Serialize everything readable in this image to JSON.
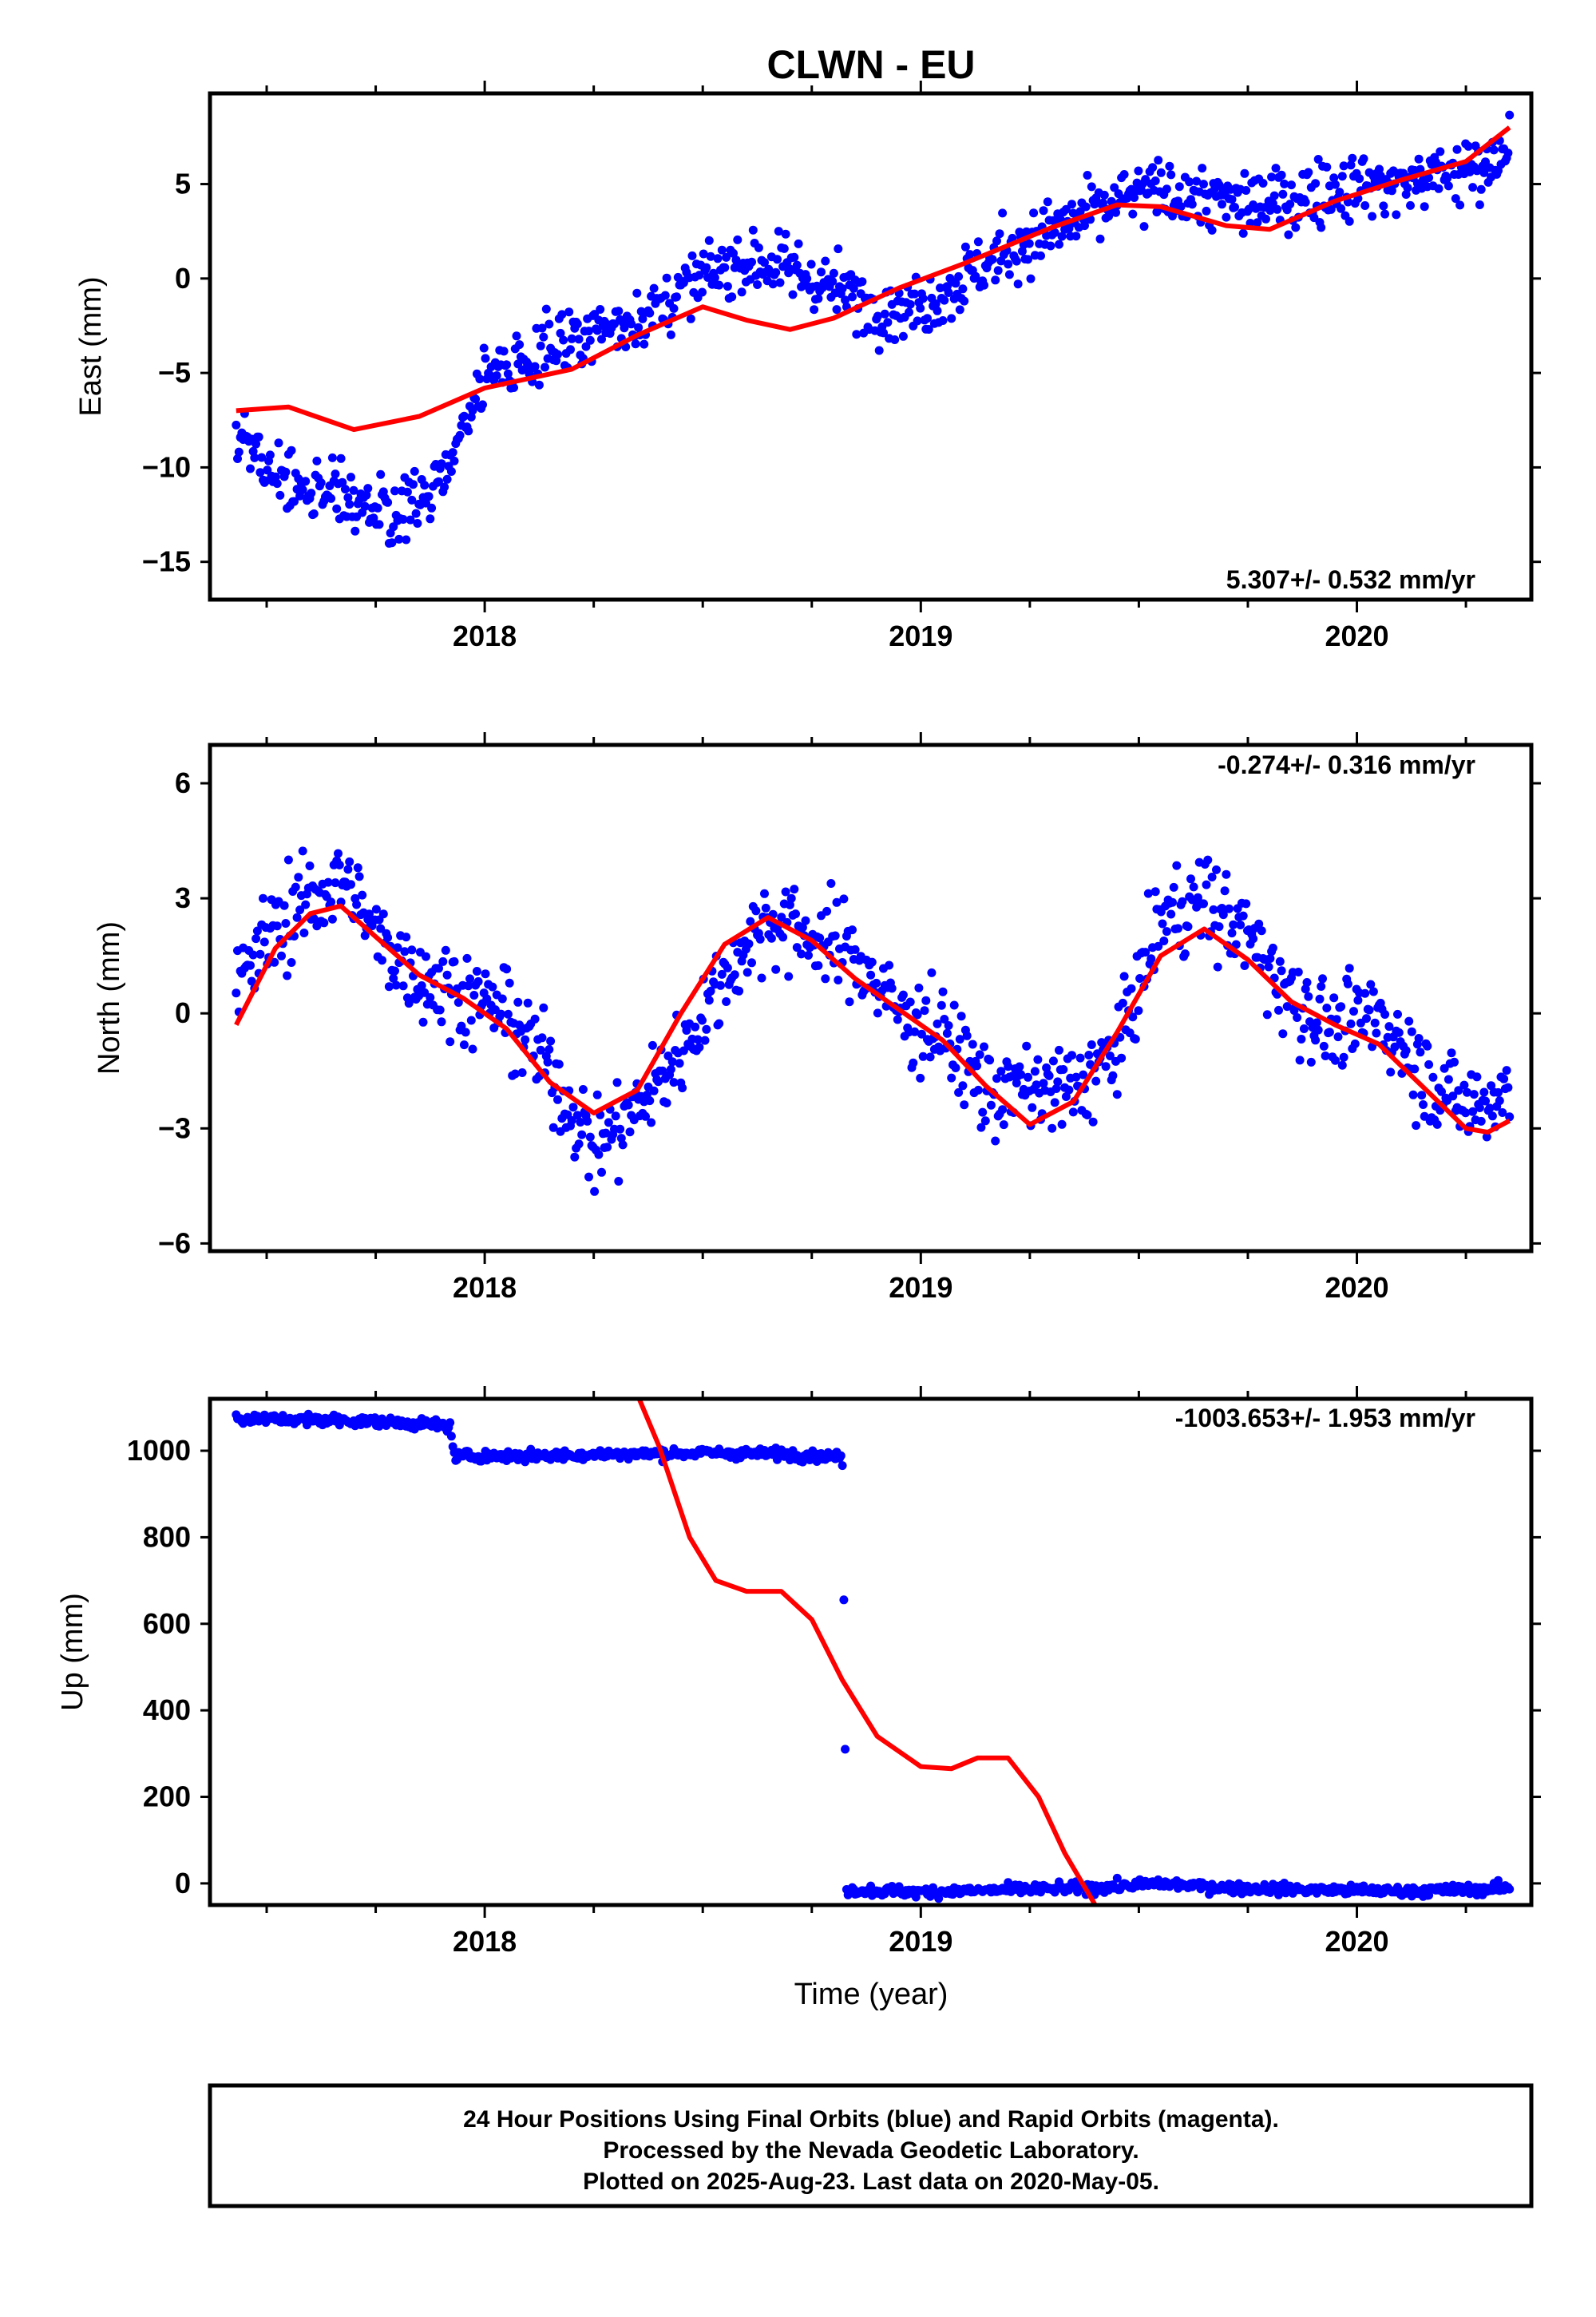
{
  "title": "CLWN - EU",
  "footer": {
    "line1": "24 Hour Positions Using Final Orbits (blue) and Rapid Orbits (magenta).",
    "line2": "Processed by the Nevada Geodetic Laboratory.",
    "line3": "Plotted on 2025-Aug-23. Last data on 2020-May-05."
  },
  "colors": {
    "data": "#0000ff",
    "model": "#ff0000",
    "frame": "#000000"
  },
  "chart_data": [
    {
      "type": "scatter",
      "ylabel": "East (mm)",
      "rate": "5.307+/- 0.532 mm/yr",
      "xlim": [
        2017.37,
        2020.4
      ],
      "ylim": [
        -17,
        9.8
      ],
      "xticks": [
        2018,
        2019,
        2020
      ],
      "yticks": [
        -15,
        -10,
        -5,
        0,
        5
      ],
      "series": [
        {
          "x": [
            2017.43,
            2017.5,
            2017.6,
            2017.7,
            2017.8,
            2017.9,
            2017.97,
            2018.03,
            2018.1,
            2018.2,
            2018.3,
            2018.4,
            2018.5,
            2018.6,
            2018.7,
            2018.8,
            2018.9,
            2019.0,
            2019.1,
            2019.2,
            2019.3,
            2019.4,
            2019.5,
            2019.6,
            2019.7,
            2019.8,
            2019.9,
            2020.0,
            2020.1,
            2020.2,
            2020.3,
            2020.35
          ],
          "y": [
            -8,
            -10.5,
            -11,
            -12,
            -12.5,
            -11,
            -6.5,
            -5,
            -4,
            -3,
            -2.5,
            -1.5,
            0,
            1,
            0.5,
            -0.5,
            -1.5,
            -1.5,
            0,
            1.5,
            2.5,
            3.5,
            4.5,
            4.5,
            4,
            4,
            4.5,
            5,
            5,
            5.5,
            6,
            7.5
          ]
        },
        {
          "x": [
            2017.43,
            2017.55,
            2017.7,
            2017.85,
            2018.0,
            2018.2,
            2018.35,
            2018.5,
            2018.6,
            2018.7,
            2018.8,
            2018.95,
            2019.1,
            2019.3,
            2019.45,
            2019.55,
            2019.7,
            2019.8,
            2019.95,
            2020.1,
            2020.25,
            2020.35
          ],
          "y": [
            -7,
            -6.8,
            -8,
            -7.3,
            -5.8,
            -4.8,
            -3,
            -1.5,
            -2.2,
            -2.7,
            -2.1,
            -0.5,
            0.8,
            2.7,
            3.9,
            3.8,
            2.8,
            2.6,
            4.1,
            5.2,
            6.2,
            8.0
          ]
        }
      ]
    },
    {
      "type": "scatter",
      "ylabel": "North (mm)",
      "rate": "-0.274+/- 0.316 mm/yr",
      "xlim": [
        2017.37,
        2020.4
      ],
      "ylim": [
        -6.2,
        7
      ],
      "xticks": [
        2018,
        2019,
        2020
      ],
      "yticks": [
        -6,
        -3,
        0,
        3,
        6
      ],
      "series": [
        {
          "x": [
            2017.43,
            2017.5,
            2017.6,
            2017.68,
            2017.75,
            2017.85,
            2017.95,
            2018.05,
            2018.15,
            2018.25,
            2018.35,
            2018.45,
            2018.55,
            2018.65,
            2018.75,
            2018.85,
            2018.95,
            2019.05,
            2019.15,
            2019.25,
            2019.35,
            2019.45,
            2019.55,
            2019.65,
            2019.75,
            2019.85,
            2019.95,
            2020.05,
            2020.15,
            2020.25,
            2020.35
          ],
          "y": [
            0.5,
            2,
            3,
            3.5,
            2,
            1,
            0.5,
            0,
            -1.5,
            -3.5,
            -2.5,
            -1,
            1,
            2.5,
            2,
            1.5,
            0,
            -0.5,
            -2,
            -2,
            -2,
            -1,
            2.5,
            3,
            2,
            0.5,
            -0.5,
            0,
            -1.5,
            -2.5,
            -2
          ]
        },
        {
          "x": [
            2017.43,
            2017.52,
            2017.6,
            2017.67,
            2017.75,
            2017.85,
            2017.95,
            2018.05,
            2018.15,
            2018.25,
            2018.35,
            2018.45,
            2018.55,
            2018.65,
            2018.75,
            2018.85,
            2018.95,
            2019.05,
            2019.15,
            2019.25,
            2019.35,
            2019.45,
            2019.55,
            2019.65,
            2019.75,
            2019.85,
            2019.95,
            2020.05,
            2020.15,
            2020.25,
            2020.3,
            2020.35
          ],
          "y": [
            -0.3,
            1.7,
            2.6,
            2.8,
            2.0,
            1.0,
            0.4,
            -0.4,
            -1.8,
            -2.6,
            -2.0,
            0.0,
            1.8,
            2.5,
            1.9,
            0.9,
            0.1,
            -0.7,
            -1.9,
            -2.9,
            -2.3,
            -0.5,
            1.5,
            2.2,
            1.4,
            0.3,
            -0.3,
            -0.8,
            -1.9,
            -3.0,
            -3.1,
            -2.8
          ]
        }
      ]
    },
    {
      "type": "scatter",
      "ylabel": "Up (mm)",
      "xlabel": "Time (year)",
      "rate": "-1003.653+/- 1.953 mm/yr",
      "xlim": [
        2017.37,
        2020.4
      ],
      "ylim": [
        -50,
        1120
      ],
      "xticks": [
        2018,
        2019,
        2020
      ],
      "yticks": [
        0,
        200,
        400,
        600,
        800,
        1000
      ],
      "series": [
        {
          "x": [
            2017.43,
            2017.55,
            2017.7,
            2017.85,
            2017.92,
            2017.93,
            2018.1,
            2018.3,
            2018.5,
            2018.7,
            2018.82,
            2018.83,
            2019.0,
            2019.2,
            2019.4,
            2019.55,
            2019.7,
            2019.9,
            2020.1,
            2020.25,
            2020.35
          ],
          "y": [
            1075,
            1072,
            1070,
            1062,
            1058,
            988,
            988,
            992,
            995,
            992,
            985,
            -15,
            -20,
            -15,
            -10,
            0,
            -10,
            -15,
            -18,
            -15,
            -10
          ]
        },
        {
          "x": [
            2018.35,
            2018.4,
            2018.47,
            2018.53,
            2018.6,
            2018.68,
            2018.75,
            2018.82,
            2018.9,
            2019.0,
            2019.07,
            2019.13,
            2019.2,
            2019.27,
            2019.33,
            2019.4
          ],
          "y": [
            1130,
            1010,
            800,
            700,
            675,
            675,
            610,
            470,
            340,
            270,
            265,
            290,
            290,
            200,
            70,
            -50
          ]
        }
      ]
    }
  ]
}
